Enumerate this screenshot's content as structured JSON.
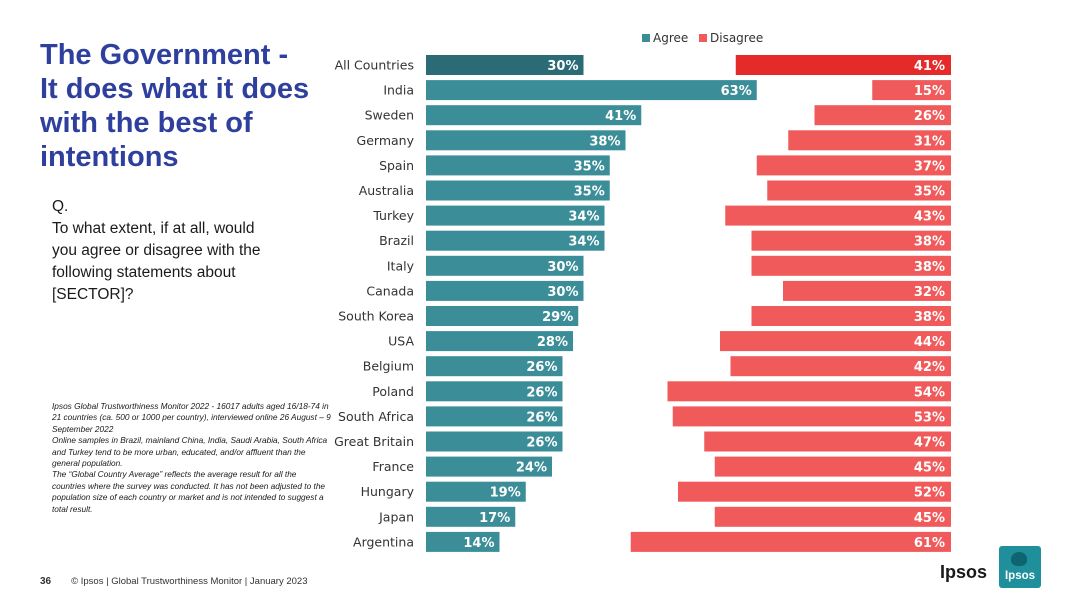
{
  "slide": {
    "title": "The Government -\nIt does what it does\nwith the best of\nintentions",
    "question": "Q.\nTo what extent, if at all, would\nyou agree or disagree with the\nfollowing statements about\n[SECTOR]?",
    "methodology": [
      "Ipsos Global Trustworthiness Monitor 2022 - 16017 adults aged 16/18-74 in 21 countries (ca. 500 or 1000 per country), interviewed online 26 August – 9 September 2022",
      "Online samples in Brazil, mainland China, India, Saudi Arabia, South Africa and Turkey tend to be more urban, educated, and/or affluent than the general population.",
      "The “Global Country Average” reflects the average result for all the countries where the survey was conducted. It has not been adjusted to the population size of each country or market and is not intended to suggest a total result."
    ],
    "page_number": "36",
    "footer_text": "© Ipsos | Global Trustworthiness Monitor | January 2023",
    "logo_word": "Ipsos",
    "logo_badge_text": "Ipsos"
  },
  "colors": {
    "agree": "#3b8e98",
    "agree_highlight": "#2b6b75",
    "disagree": "#f05a5a",
    "disagree_highlight": "#e52a2a",
    "title": "#2e3f9e"
  },
  "chart_data": {
    "type": "bar",
    "orientation": "horizontal",
    "title": "",
    "xlabel": "",
    "ylabel": "",
    "legend": {
      "position": "top",
      "entries": [
        "Agree",
        "Disagree"
      ]
    },
    "categories": [
      "All Countries",
      "India",
      "Sweden",
      "Germany",
      "Spain",
      "Australia",
      "Turkey",
      "Brazil",
      "Italy",
      "Canada",
      "South Korea",
      "USA",
      "Belgium",
      "Poland",
      "South Africa",
      "Great Britain",
      "France",
      "Hungary",
      "Japan",
      "Argentina"
    ],
    "series": [
      {
        "name": "Agree",
        "anchor": "left",
        "values": [
          30,
          63,
          41,
          38,
          35,
          35,
          34,
          34,
          30,
          30,
          29,
          28,
          26,
          26,
          26,
          26,
          24,
          19,
          17,
          14
        ]
      },
      {
        "name": "Disagree",
        "anchor": "right",
        "values": [
          41,
          15,
          26,
          31,
          37,
          35,
          43,
          38,
          38,
          32,
          38,
          44,
          42,
          54,
          53,
          47,
          45,
          52,
          45,
          61
        ]
      }
    ],
    "value_format": "%",
    "highlight_category": "All Countries",
    "xlim": [
      0,
      100
    ]
  }
}
